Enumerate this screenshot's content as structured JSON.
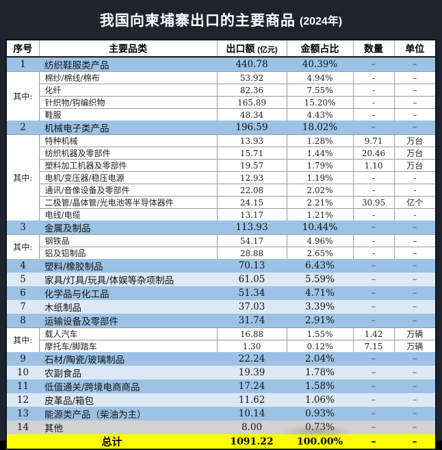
{
  "title": {
    "main": "我国向柬埔寨出口的主要商品",
    "year": "(2024年)"
  },
  "headers": {
    "no": "序号",
    "category": "主要品类",
    "amount": "出口额",
    "amount_unit": "(亿元)",
    "share": "金额占比",
    "qty": "数量",
    "unit": "单位"
  },
  "colors": {
    "frame_bg": "#1d242e",
    "category_blue": "#9cc2e5",
    "category_light_blue": "#dce9f5",
    "other_gray": "#d2d2d2",
    "total_yellow": "#ffff00",
    "title_text": "#ffffff"
  },
  "rows": [
    {
      "kind": "cat",
      "shade": "md",
      "no": "1",
      "name": "纺织鞋服类产品",
      "amount": "440.78",
      "share": "40.39%",
      "qty": "–",
      "unit": "–"
    },
    {
      "kind": "group",
      "label": "其中:",
      "items": [
        {
          "name": "棉纱/棉线/棉布",
          "amount": "53.92",
          "share": "4.94%",
          "qty": "-",
          "unit": "–"
        },
        {
          "name": "化纤",
          "amount": "82.36",
          "share": "7.55%",
          "qty": "-",
          "unit": "–"
        },
        {
          "name": "针织物/钩编织物",
          "amount": "165.89",
          "share": "15.20%",
          "qty": "-",
          "unit": "–"
        },
        {
          "name": "鞋服",
          "amount": "48.34",
          "share": "4.43%",
          "qty": "-",
          "unit": "–"
        }
      ]
    },
    {
      "kind": "cat",
      "shade": "md",
      "no": "2",
      "name": "机械电子类产品",
      "amount": "196.59",
      "share": "18.02%",
      "qty": "–",
      "unit": "–"
    },
    {
      "kind": "group",
      "label": "其中:",
      "items": [
        {
          "name": "特种机械",
          "amount": "13.93",
          "share": "1.28%",
          "qty": "9.71",
          "unit": "万台"
        },
        {
          "name": "纺织机器及零部件",
          "amount": "15.71",
          "share": "1.44%",
          "qty": "20.46",
          "unit": "万台"
        },
        {
          "name": "塑料加工机器及零部件",
          "amount": "19.57",
          "share": "1.79%",
          "qty": "1.10",
          "unit": "万台"
        },
        {
          "name": "电机/变压器/稳压电源",
          "amount": "12.93",
          "share": "1.19%",
          "qty": "-",
          "unit": "-"
        },
        {
          "name": "通讯/音像设备及零部件",
          "amount": "22.08",
          "share": "2.02%",
          "qty": "-",
          "unit": "-"
        },
        {
          "name": "二极管/晶体管/光电池等半导体器件",
          "amount": "24.15",
          "share": "2.21%",
          "qty": "30.95",
          "unit": "亿个"
        },
        {
          "name": "电线/电缆",
          "amount": "13.17",
          "share": "1.21%",
          "qty": "-",
          "unit": "-"
        }
      ]
    },
    {
      "kind": "cat",
      "shade": "md",
      "no": "3",
      "name": "金属及制品",
      "amount": "113.93",
      "share": "10.44%",
      "qty": "–",
      "unit": "–"
    },
    {
      "kind": "group",
      "label": "其中:",
      "items": [
        {
          "name": "钢铁品",
          "amount": "54.17",
          "share": "4.96%",
          "qty": "-",
          "unit": "–"
        },
        {
          "name": "铝及铝制品",
          "amount": "28.88",
          "share": "2.65%",
          "qty": "-",
          "unit": "–"
        }
      ]
    },
    {
      "kind": "cat",
      "shade": "md",
      "no": "4",
      "name": "塑料/橡胶制品",
      "amount": "70.13",
      "share": "6.43%",
      "qty": "–",
      "unit": "–"
    },
    {
      "kind": "cat",
      "shade": "light",
      "no": "5",
      "name": "家具/灯具/玩具/体娱等杂项制品",
      "amount": "61.05",
      "share": "5.59%",
      "qty": "–",
      "unit": "–"
    },
    {
      "kind": "cat",
      "shade": "md",
      "no": "6",
      "name": "化学品与化工品",
      "amount": "51.34",
      "share": "4.71%",
      "qty": "–",
      "unit": "–"
    },
    {
      "kind": "cat",
      "shade": "light",
      "no": "7",
      "name": "木纸制品",
      "amount": "37.03",
      "share": "3.39%",
      "qty": "–",
      "unit": "–"
    },
    {
      "kind": "cat",
      "shade": "md",
      "no": "8",
      "name": "运输设备及零部件",
      "amount": "31.74",
      "share": "2.91%",
      "qty": "–",
      "unit": "–"
    },
    {
      "kind": "group",
      "label": "其中:",
      "items": [
        {
          "name": "载人汽车",
          "amount": "16.88",
          "share": "1.55%",
          "qty": "1.42",
          "unit": "万辆"
        },
        {
          "name": "摩托车/脚踏车",
          "amount": "1.30",
          "share": "0.12%",
          "qty": "7.15",
          "unit": "万辆"
        }
      ]
    },
    {
      "kind": "cat",
      "shade": "md",
      "no": "9",
      "name": "石材/陶瓷/玻璃制品",
      "amount": "22.24",
      "share": "2.04%",
      "qty": "–",
      "unit": "–"
    },
    {
      "kind": "cat",
      "shade": "light",
      "no": "10",
      "name": "农副食品",
      "amount": "19.39",
      "share": "1.78%",
      "qty": "–",
      "unit": "–"
    },
    {
      "kind": "cat",
      "shade": "md",
      "no": "11",
      "name": "低值通关/跨境电商商品",
      "amount": "17.24",
      "share": "1.58%",
      "qty": "–",
      "unit": "–"
    },
    {
      "kind": "cat",
      "shade": "light",
      "no": "12",
      "name": "皮革品/箱包",
      "amount": "11.62",
      "share": "1.06%",
      "qty": "–",
      "unit": "–"
    },
    {
      "kind": "cat",
      "shade": "md",
      "no": "13",
      "name": "能源类产品（柴油为主）",
      "amount": "10.14",
      "share": "0.93%",
      "qty": "–",
      "unit": "–"
    },
    {
      "kind": "cat",
      "shade": "gray",
      "no": "14",
      "name": "其他",
      "amount": "8.00",
      "share": "0.73%",
      "qty": "–",
      "unit": "–"
    },
    {
      "kind": "total",
      "label": "总计",
      "amount": "1091.22",
      "share": "100.00%",
      "qty": "–",
      "unit": "–"
    }
  ],
  "chart_data": {
    "type": "table",
    "title": "我国向柬埔寨出口的主要商品 (2024年)",
    "columns": [
      "序号",
      "主要品类",
      "出口额(亿元)",
      "金额占比",
      "数量",
      "单位"
    ],
    "rows": [
      [
        "1",
        "纺织鞋服类产品",
        440.78,
        "40.39%",
        "–",
        "–"
      ],
      [
        "其中:",
        "棉纱/棉线/棉布",
        53.92,
        "4.94%",
        "-",
        "-"
      ],
      [
        "其中:",
        "化纤",
        82.36,
        "7.55%",
        "-",
        "-"
      ],
      [
        "其中:",
        "针织物/钩编织物",
        165.89,
        "15.20%",
        "-",
        "-"
      ],
      [
        "其中:",
        "鞋服",
        48.34,
        "4.43%",
        "-",
        "-"
      ],
      [
        "2",
        "机械电子类产品",
        196.59,
        "18.02%",
        "–",
        "–"
      ],
      [
        "其中:",
        "特种机械",
        13.93,
        "1.28%",
        9.71,
        "万台"
      ],
      [
        "其中:",
        "纺织机器及零部件",
        15.71,
        "1.44%",
        20.46,
        "万台"
      ],
      [
        "其中:",
        "塑料加工机器及零部件",
        19.57,
        "1.79%",
        1.1,
        "万台"
      ],
      [
        "其中:",
        "电机/变压器/稳压电源",
        12.93,
        "1.19%",
        "-",
        "-"
      ],
      [
        "其中:",
        "通讯/音像设备及零部件",
        22.08,
        "2.02%",
        "-",
        "-"
      ],
      [
        "其中:",
        "二极管/晶体管/光电池等半导体器件",
        24.15,
        "2.21%",
        30.95,
        "亿个"
      ],
      [
        "其中:",
        "电线/电缆",
        13.17,
        "1.21%",
        "-",
        "-"
      ],
      [
        "3",
        "金属及制品",
        113.93,
        "10.44%",
        "–",
        "–"
      ],
      [
        "其中:",
        "钢铁品",
        54.17,
        "4.96%",
        "-",
        "-"
      ],
      [
        "其中:",
        "铝及铝制品",
        28.88,
        "2.65%",
        "-",
        "-"
      ],
      [
        "4",
        "塑料/橡胶制品",
        70.13,
        "6.43%",
        "–",
        "–"
      ],
      [
        "5",
        "家具/灯具/玩具/体娱等杂项制品",
        61.05,
        "5.59%",
        "–",
        "–"
      ],
      [
        "6",
        "化学品与化工品",
        51.34,
        "4.71%",
        "–",
        "–"
      ],
      [
        "7",
        "木纸制品",
        37.03,
        "3.39%",
        "–",
        "–"
      ],
      [
        "8",
        "运输设备及零部件",
        31.74,
        "2.91%",
        "–",
        "–"
      ],
      [
        "其中:",
        "载人汽车",
        16.88,
        "1.55%",
        1.42,
        "万辆"
      ],
      [
        "其中:",
        "摩托车/脚踏车",
        1.3,
        "0.12%",
        7.15,
        "万辆"
      ],
      [
        "9",
        "石材/陶瓷/玻璃制品",
        22.24,
        "2.04%",
        "–",
        "–"
      ],
      [
        "10",
        "农副食品",
        19.39,
        "1.78%",
        "–",
        "–"
      ],
      [
        "11",
        "低值通关/跨境电商商品",
        17.24,
        "1.58%",
        "–",
        "–"
      ],
      [
        "12",
        "皮革品/箱包",
        11.62,
        "1.06%",
        "–",
        "–"
      ],
      [
        "13",
        "能源类产品（柴油为主）",
        10.14,
        "0.93%",
        "–",
        "–"
      ],
      [
        "14",
        "其他",
        8.0,
        "0.73%",
        "–",
        "–"
      ],
      [
        "",
        "总计",
        1091.22,
        "100.00%",
        "–",
        "–"
      ]
    ]
  }
}
